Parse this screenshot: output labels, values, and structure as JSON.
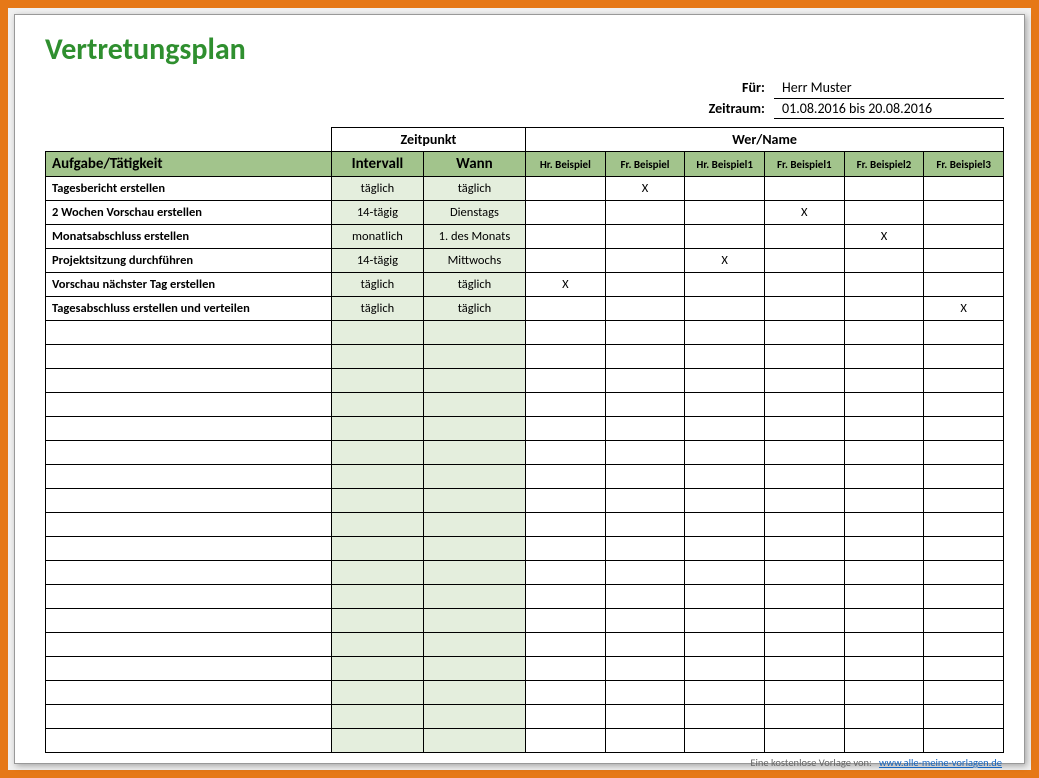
{
  "title": "Vertretungsplan",
  "meta": {
    "for_label": "Für:",
    "for_value": "Herr Muster",
    "period_label": "Zeitraum:",
    "period_value": "01.08.2016 bis 20.08.2016"
  },
  "headers": {
    "zeitpunkt": "Zeitpunkt",
    "wer": "Wer/Name",
    "task": "Aufgabe/Tätigkeit",
    "interval": "Intervall",
    "when": "Wann"
  },
  "people": [
    "Hr. Beispiel",
    "Fr. Beispiel",
    "Hr. Beispiel1",
    "Fr. Beispiel1",
    "Fr. Beispiel2",
    "Fr. Beispiel3"
  ],
  "rows": [
    {
      "task": "Tagesbericht erstellen",
      "interval": "täglich",
      "when": "täglich",
      "marks": [
        "",
        "X",
        "",
        "",
        "",
        ""
      ]
    },
    {
      "task": "2 Wochen Vorschau erstellen",
      "interval": "14-tägig",
      "when": "Dienstags",
      "marks": [
        "",
        "",
        "",
        "X",
        "",
        ""
      ]
    },
    {
      "task": "Monatsabschluss erstellen",
      "interval": "monatlich",
      "when": "1. des Monats",
      "marks": [
        "",
        "",
        "",
        "",
        "X",
        ""
      ]
    },
    {
      "task": "Projektsitzung durchführen",
      "interval": "14-tägig",
      "when": "Mittwochs",
      "marks": [
        "",
        "",
        "X",
        "",
        "",
        ""
      ]
    },
    {
      "task": "Vorschau nächster Tag erstellen",
      "interval": "täglich",
      "when": "täglich",
      "marks": [
        "X",
        "",
        "",
        "",
        "",
        ""
      ]
    },
    {
      "task": "Tagesabschluss erstellen und verteilen",
      "interval": "täglich",
      "when": "täglich",
      "marks": [
        "",
        "",
        "",
        "",
        "",
        "X"
      ]
    }
  ],
  "empty_rows": 18,
  "footer": {
    "text": "Eine kostenlose Vorlage von:",
    "link_text": "www.alle-meine-vorlagen.de"
  },
  "colors": {
    "accent_border": "#e67817",
    "title": "#2f8f2f",
    "header_fill": "#a2c48c",
    "zebra_fill": "#e4eedd",
    "link": "#1565c0"
  }
}
